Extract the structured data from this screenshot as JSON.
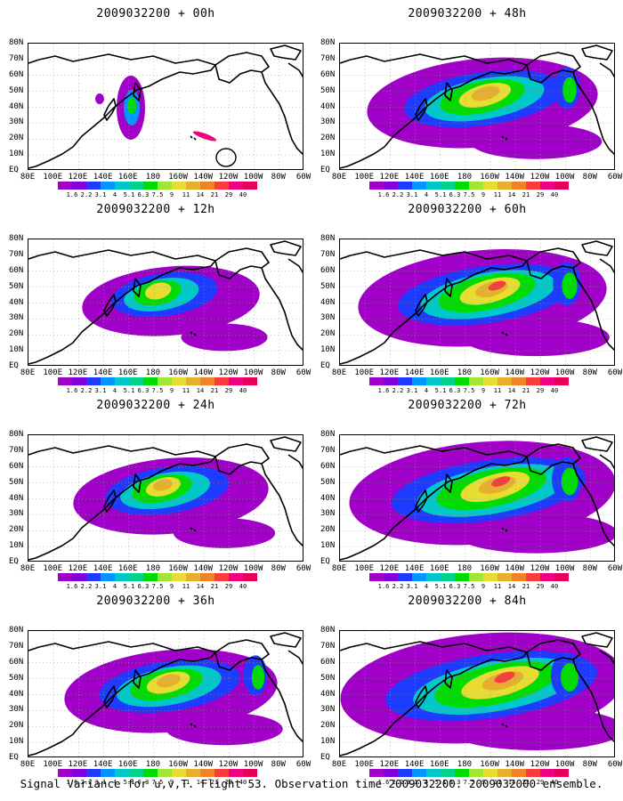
{
  "caption": "Signal Variance for u,v,T. Flight 53. Observation time 2009032200. 2009032000 ensemble.",
  "lat_labels": [
    "80N",
    "70N",
    "60N",
    "50N",
    "40N",
    "30N",
    "20N",
    "10N",
    "EQ"
  ],
  "lon_labels": [
    "80E",
    "100E",
    "120E",
    "140E",
    "160E",
    "180",
    "160W",
    "140W",
    "120W",
    "100W",
    "80W",
    "60W"
  ],
  "colorbar": {
    "labels": [
      "1.6",
      "2.2",
      "3.1",
      "4",
      "5.1",
      "6.3",
      "7.5",
      "9",
      "11",
      "14",
      "21",
      "29",
      "40"
    ],
    "colors": [
      "#a000c8",
      "#8200dc",
      "#1e3cff",
      "#0096ff",
      "#00c8c8",
      "#00d28c",
      "#00dc00",
      "#a0e632",
      "#e6dc32",
      "#e6af2d",
      "#f08228",
      "#fa3c3c",
      "#f00082",
      "#e6005a"
    ]
  },
  "panels": [
    {
      "title": "2009032200 + 00h",
      "level": 0
    },
    {
      "title": "2009032200 + 48h",
      "level": 4
    },
    {
      "title": "2009032200 + 12h",
      "level": 1
    },
    {
      "title": "2009032200 + 60h",
      "level": 5
    },
    {
      "title": "2009032200 + 24h",
      "level": 2
    },
    {
      "title": "2009032200 + 72h",
      "level": 6
    },
    {
      "title": "2009032200 + 36h",
      "level": 3
    },
    {
      "title": "2009032200 + 84h",
      "level": 7
    }
  ]
}
